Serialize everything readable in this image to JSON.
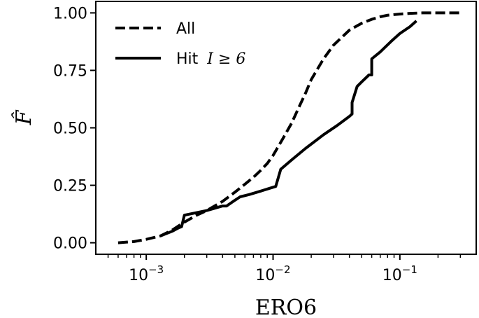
{
  "chart_data": {
    "type": "line",
    "xlabel": "ERO6",
    "ylabel": "F̂",
    "x_scale": "log",
    "xlim": [
      0.0004,
      0.4
    ],
    "ylim": [
      -0.05,
      1.05
    ],
    "x_ticks": [
      {
        "value": 0.001,
        "base": "10",
        "exp": "−3"
      },
      {
        "value": 0.01,
        "base": "10",
        "exp": "−2"
      },
      {
        "value": 0.1,
        "base": "10",
        "exp": "−1"
      }
    ],
    "y_ticks": [
      {
        "value": 0.0,
        "label": "0.00"
      },
      {
        "value": 0.25,
        "label": "0.25"
      },
      {
        "value": 0.5,
        "label": "0.50"
      },
      {
        "value": 0.75,
        "label": "0.75"
      },
      {
        "value": 1.0,
        "label": "1.00"
      }
    ],
    "grid": false,
    "legend": "upper-left",
    "series": [
      {
        "name": "All",
        "style": "dashed",
        "color": "#000000",
        "x": [
          0.0006,
          0.0008,
          0.001,
          0.0013,
          0.0016,
          0.002,
          0.0025,
          0.003,
          0.004,
          0.005,
          0.006,
          0.007,
          0.008,
          0.009,
          0.01,
          0.012,
          0.014,
          0.016,
          0.018,
          0.02,
          0.025,
          0.03,
          0.04,
          0.05,
          0.06,
          0.07,
          0.08,
          0.1,
          0.12,
          0.15,
          0.2,
          0.3
        ],
        "y": [
          0.0,
          0.005,
          0.015,
          0.03,
          0.055,
          0.09,
          0.12,
          0.14,
          0.18,
          0.22,
          0.255,
          0.285,
          0.315,
          0.345,
          0.38,
          0.455,
          0.52,
          0.59,
          0.65,
          0.71,
          0.8,
          0.86,
          0.925,
          0.955,
          0.972,
          0.983,
          0.99,
          0.995,
          0.998,
          1.0,
          1.0,
          1.0
        ]
      },
      {
        "name": "Hit",
        "style": "solid",
        "color": "#000000",
        "x": [
          0.0013,
          0.0016,
          0.0018,
          0.0019,
          0.002,
          0.003,
          0.004,
          0.0043,
          0.005,
          0.0055,
          0.0065,
          0.008,
          0.0098,
          0.0105,
          0.0115,
          0.014,
          0.018,
          0.025,
          0.032,
          0.04,
          0.042,
          0.042,
          0.046,
          0.05,
          0.057,
          0.06,
          0.06,
          0.07,
          0.085,
          0.1,
          0.12,
          0.135
        ],
        "y": [
          0.03,
          0.05,
          0.065,
          0.07,
          0.12,
          0.14,
          0.16,
          0.16,
          0.185,
          0.2,
          0.21,
          0.225,
          0.24,
          0.245,
          0.32,
          0.36,
          0.41,
          0.47,
          0.51,
          0.55,
          0.56,
          0.61,
          0.68,
          0.7,
          0.73,
          0.73,
          0.8,
          0.83,
          0.875,
          0.91,
          0.94,
          0.965
        ]
      }
    ]
  },
  "legend": {
    "items": [
      {
        "label": "All",
        "math": ""
      },
      {
        "label": "Hit ",
        "math": "I ≥ 6"
      }
    ]
  }
}
